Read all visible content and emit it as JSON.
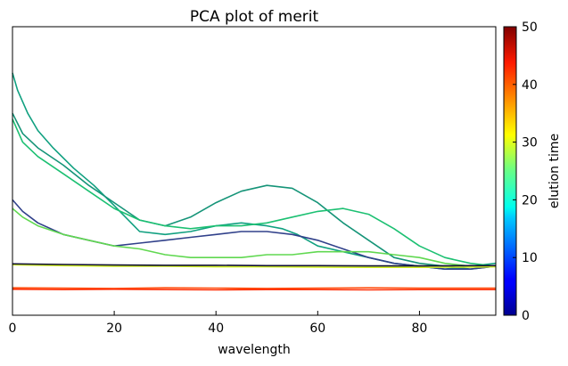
{
  "chart_data": {
    "type": "line",
    "title": "PCA plot of merit",
    "xlabel": "wavelength",
    "ylabel": "",
    "xlim": [
      0,
      95
    ],
    "ylim": [
      0,
      1
    ],
    "x_ticks": [
      0,
      20,
      40,
      60,
      80
    ],
    "grid": false,
    "legend": "none",
    "colorbar": {
      "label": "elution time",
      "min": 0,
      "max": 50,
      "ticks": [
        0,
        10,
        20,
        30,
        40,
        50
      ],
      "colormap": "jet"
    },
    "series": [
      {
        "elution": 18.5,
        "color": "#10a080",
        "x": [
          0,
          1,
          3,
          5,
          8,
          12,
          16,
          20,
          25,
          30,
          35,
          40,
          45,
          50,
          53,
          56,
          60,
          65,
          70,
          75,
          80,
          85,
          90,
          95
        ],
        "y": [
          0.84,
          0.78,
          0.7,
          0.64,
          0.58,
          0.51,
          0.45,
          0.38,
          0.29,
          0.28,
          0.29,
          0.31,
          0.32,
          0.31,
          0.3,
          0.28,
          0.24,
          0.22,
          0.2,
          0.18,
          0.17,
          0.16,
          0.17,
          0.18
        ]
      },
      {
        "elution": 17.5,
        "color": "#159478",
        "x": [
          0,
          2,
          5,
          10,
          15,
          20,
          25,
          30,
          35,
          40,
          45,
          50,
          55,
          60,
          65,
          70,
          75,
          80,
          85,
          90,
          95
        ],
        "y": [
          0.7,
          0.63,
          0.58,
          0.52,
          0.45,
          0.39,
          0.33,
          0.31,
          0.34,
          0.39,
          0.43,
          0.45,
          0.44,
          0.39,
          0.32,
          0.26,
          0.2,
          0.18,
          0.17,
          0.16,
          0.17
        ]
      },
      {
        "elution": 21,
        "color": "#1cc072",
        "x": [
          0,
          2,
          5,
          10,
          15,
          20,
          25,
          30,
          35,
          40,
          45,
          50,
          55,
          60,
          65,
          70,
          75,
          80,
          85,
          90,
          95
        ],
        "y": [
          0.68,
          0.6,
          0.55,
          0.49,
          0.43,
          0.37,
          0.33,
          0.31,
          0.3,
          0.31,
          0.31,
          0.32,
          0.34,
          0.36,
          0.37,
          0.35,
          0.3,
          0.24,
          0.2,
          0.18,
          0.17
        ]
      },
      {
        "elution": 12,
        "color": "#30408a",
        "x": [
          0,
          2,
          5,
          10,
          15,
          20,
          25,
          30,
          35,
          40,
          45,
          50,
          55,
          60,
          65,
          70,
          75,
          80,
          85,
          90,
          95
        ],
        "y": [
          0.4,
          0.36,
          0.32,
          0.28,
          0.26,
          0.24,
          0.25,
          0.26,
          0.27,
          0.28,
          0.29,
          0.29,
          0.28,
          0.26,
          0.23,
          0.2,
          0.18,
          0.17,
          0.16,
          0.16,
          0.17
        ]
      },
      {
        "elution": 26,
        "color": "#60d850",
        "x": [
          0,
          2,
          5,
          10,
          15,
          20,
          25,
          30,
          35,
          40,
          45,
          50,
          55,
          60,
          65,
          70,
          75,
          80,
          85,
          90,
          95
        ],
        "y": [
          0.37,
          0.34,
          0.31,
          0.28,
          0.26,
          0.24,
          0.23,
          0.21,
          0.2,
          0.2,
          0.2,
          0.21,
          0.21,
          0.22,
          0.22,
          0.22,
          0.21,
          0.2,
          0.18,
          0.17,
          0.17
        ]
      },
      {
        "elution": 29,
        "color": "#d0ee20",
        "x": [
          0,
          10,
          20,
          30,
          40,
          50,
          60,
          70,
          80,
          90,
          95
        ],
        "y": [
          0.175,
          0.172,
          0.17,
          0.17,
          0.168,
          0.168,
          0.167,
          0.166,
          0.166,
          0.167,
          0.168
        ]
      },
      {
        "elution": 4,
        "color": "#111133",
        "x": [
          0,
          10,
          20,
          30,
          40,
          50,
          60,
          70,
          80,
          90,
          95
        ],
        "y": [
          0.178,
          0.176,
          0.174,
          0.173,
          0.173,
          0.172,
          0.172,
          0.171,
          0.171,
          0.172,
          0.172
        ]
      },
      {
        "elution": 43,
        "color": "#ff5010",
        "x": [
          0,
          10,
          20,
          30,
          40,
          50,
          60,
          70,
          80,
          90,
          95
        ],
        "y": [
          0.095,
          0.094,
          0.093,
          0.095,
          0.094,
          0.093,
          0.094,
          0.095,
          0.094,
          0.094,
          0.094
        ]
      },
      {
        "elution": 45,
        "color": "#ff3008",
        "x": [
          0,
          10,
          20,
          30,
          40,
          50,
          60,
          70,
          80,
          90,
          95
        ],
        "y": [
          0.09,
          0.089,
          0.09,
          0.089,
          0.088,
          0.089,
          0.089,
          0.088,
          0.089,
          0.089,
          0.089
        ]
      }
    ]
  }
}
